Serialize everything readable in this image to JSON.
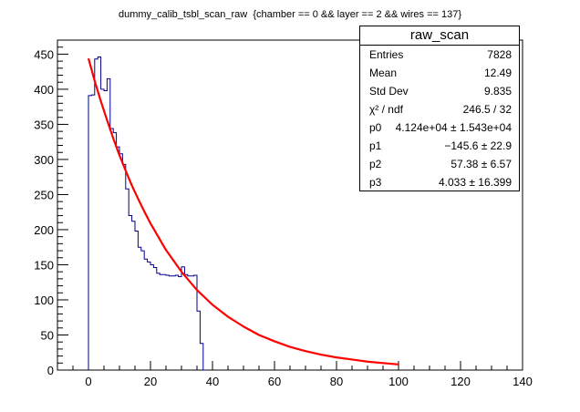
{
  "title": "dummy_calib_tsbl_scan_raw  {chamber == 0 && layer == 2 && wires == 137}",
  "stats": {
    "header": "raw_scan",
    "rows": [
      {
        "key": "Entries",
        "value": "7828"
      },
      {
        "key": "Mean",
        "value": "12.49"
      },
      {
        "key": "Std Dev",
        "value": "9.835"
      },
      {
        "key": "χ² / ndf",
        "value": "246.5 / 32"
      },
      {
        "key": "p0",
        "value": "4.124e+04 ± 1.543e+04"
      },
      {
        "key": "p1",
        "value": "−145.6 ± 22.9"
      },
      {
        "key": "p2",
        "value": "57.38 ± 6.57"
      },
      {
        "key": "p3",
        "value": "4.033 ± 16.399"
      }
    ]
  },
  "colors": {
    "histogram": "#00008b",
    "fit": "#ff0000",
    "axis": "#000000"
  },
  "chart_data": {
    "type": "line",
    "xlim": [
      -10,
      140
    ],
    "ylim": [
      0,
      470
    ],
    "xticks": [
      0,
      20,
      40,
      60,
      80,
      100,
      120,
      140
    ],
    "yticks": [
      0,
      50,
      100,
      150,
      200,
      250,
      300,
      350,
      400,
      450
    ],
    "grid": false,
    "legend": "top-right",
    "series": [
      {
        "style": "step",
        "bin_width": 1,
        "bin_edges_start": 0,
        "values": [
          391,
          392,
          443,
          446,
          400,
          398,
          415,
          344,
          338,
          318,
          308,
          293,
          258,
          220,
          212,
          198,
          175,
          170,
          158,
          154,
          150,
          146,
          138,
          136,
          136,
          135,
          134,
          134,
          135,
          133,
          147,
          136,
          134,
          134,
          135,
          84,
          38,
          0
        ]
      },
      {
        "style": "line",
        "fit_params": {
          "p0": 41240,
          "p1": -145.6,
          "p2": 57.38,
          "p3": 4.033
        },
        "x": [
          0,
          2,
          4,
          6,
          8,
          10,
          12,
          14,
          16,
          18,
          20,
          25,
          30,
          35,
          40,
          45,
          50,
          55,
          60,
          65,
          70,
          75,
          80,
          85,
          90,
          95,
          100
        ],
        "y": [
          444,
          412,
          383,
          356,
          330,
          306,
          284,
          263,
          244,
          226,
          209,
          171,
          140,
          114,
          93,
          76,
          62,
          50,
          41,
          33,
          27,
          22,
          18,
          15,
          12,
          10,
          8
        ]
      }
    ]
  }
}
